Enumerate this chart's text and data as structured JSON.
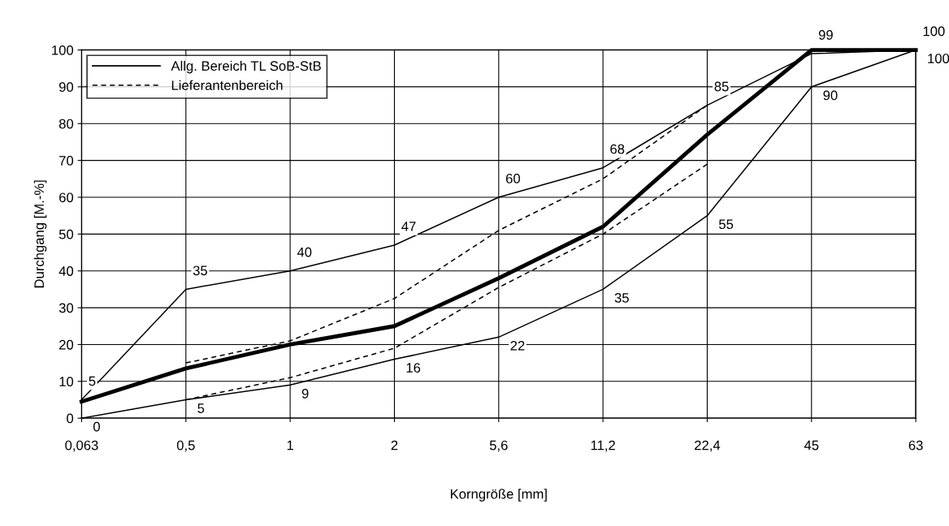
{
  "chart_data": {
    "type": "line",
    "xlabel": "Korngröße [mm]",
    "ylabel": "Durchgang [M.-%]",
    "categories": [
      "0,063",
      "0,5",
      "1",
      "2",
      "5,6",
      "11,2",
      "22,4",
      "45",
      "63"
    ],
    "series": [
      {
        "name": "Allg. Bereich TL SoB-StB",
        "color": "#000000",
        "line_style": "solid",
        "values": [
          5,
          35,
          40,
          47,
          60,
          68,
          85,
          99,
          100
        ],
        "value_labels": [
          "5",
          "35",
          "40",
          "47",
          "60",
          "68",
          "85",
          "99",
          "100"
        ]
      },
      {
        "color": "#000000",
        "line_style": "solid",
        "values": [
          0,
          5,
          9,
          16,
          22,
          35,
          55,
          90,
          100
        ],
        "value_labels": [
          "0",
          "5",
          "9",
          "16",
          "22",
          "35",
          "55",
          "90",
          "100"
        ]
      },
      {
        "name": "Lieferantenbereich",
        "color": "#000000",
        "line_style": "dashed",
        "values": [
          null,
          15,
          21,
          32.5,
          51,
          65,
          85,
          null,
          null
        ]
      },
      {
        "color": "#000000",
        "line_style": "dashed",
        "values": [
          null,
          5,
          11,
          19,
          35.5,
          50,
          69,
          null,
          null
        ]
      },
      {
        "color": "#000000",
        "line_style": "solid",
        "values": [
          4.5,
          13.5,
          20,
          25,
          38,
          52,
          77,
          100,
          100
        ]
      }
    ],
    "ylim": [
      0,
      100
    ],
    "yticks": [
      0,
      10,
      20,
      30,
      40,
      50,
      60,
      70,
      80,
      90,
      100
    ],
    "grid": true,
    "legend": "top left",
    "marker": "none"
  }
}
